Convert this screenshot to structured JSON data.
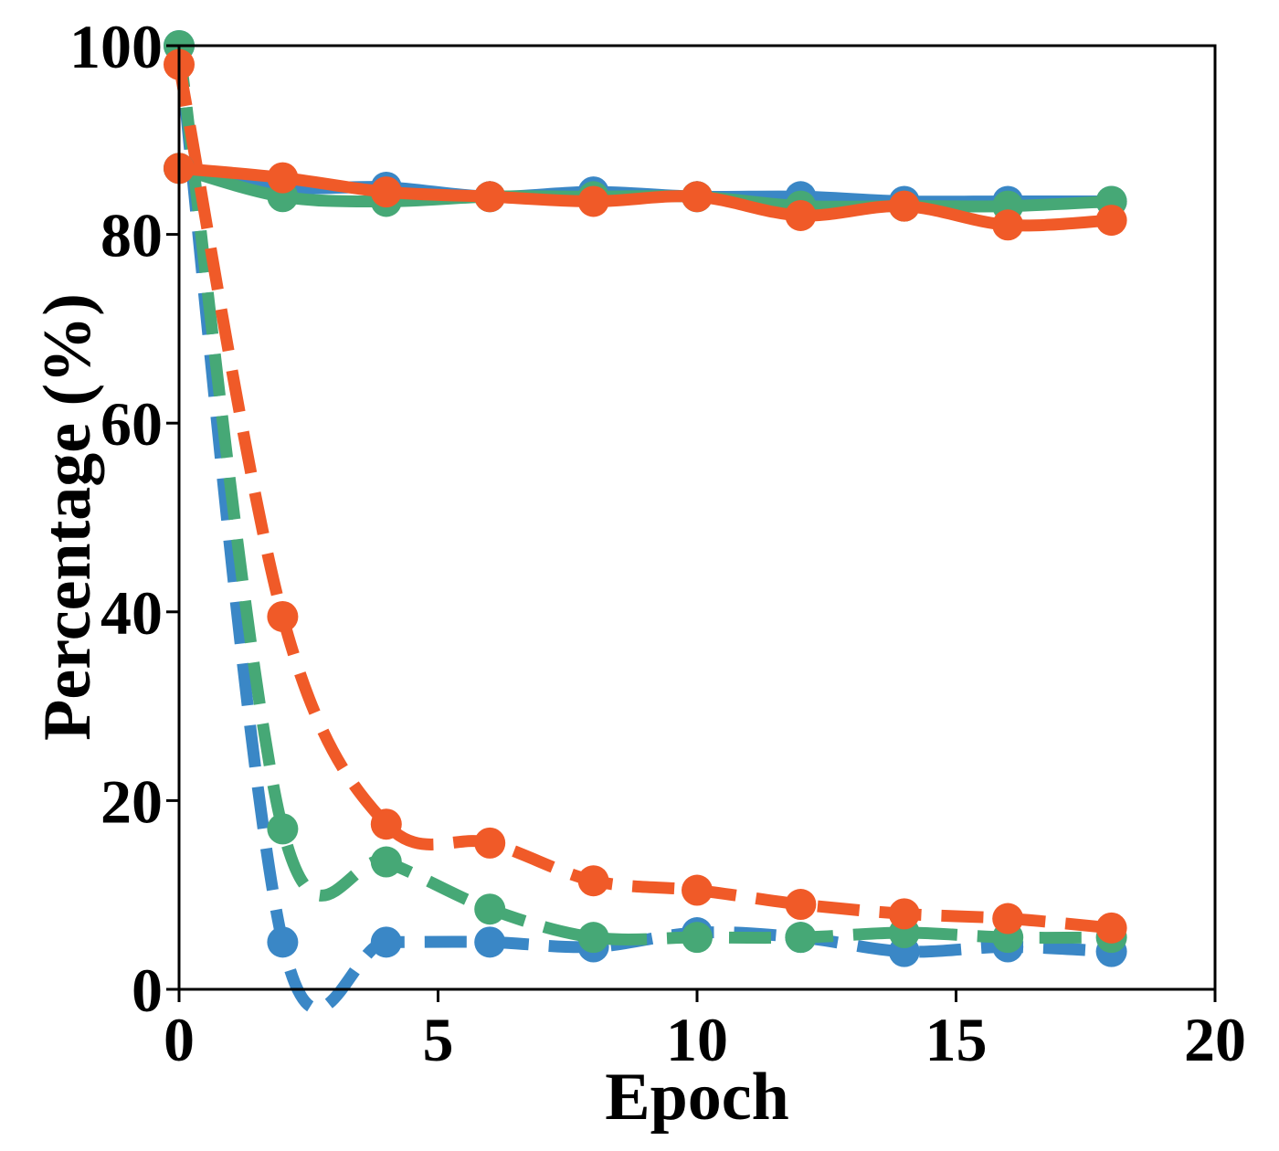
{
  "chart_data": {
    "type": "line",
    "title": "",
    "xlabel": "Epoch",
    "ylabel": "Percentage (%)",
    "xlim": [
      0,
      20
    ],
    "ylim": [
      0,
      100
    ],
    "xticks": [
      0,
      5,
      10,
      15,
      20
    ],
    "yticks": [
      0,
      20,
      40,
      60,
      80,
      100
    ],
    "grid": false,
    "legend": "none",
    "x": [
      0,
      2,
      4,
      6,
      8,
      10,
      12,
      14,
      16,
      18
    ],
    "series": [
      {
        "color": "#3a87c6",
        "style": "solid",
        "values": [
          87,
          85,
          85,
          84,
          84.5,
          84,
          84,
          83.5,
          83.5,
          83.5
        ]
      },
      {
        "color": "#46a876",
        "style": "solid",
        "values": [
          87,
          84,
          83.5,
          84,
          84,
          84,
          83,
          83,
          83,
          83.5
        ]
      },
      {
        "color": "#f05a28",
        "style": "solid",
        "values": [
          87,
          86,
          84.5,
          84,
          83.5,
          84,
          82,
          83,
          81,
          81.5
        ]
      },
      {
        "color": "#3a87c6",
        "style": "dashed",
        "values": [
          100,
          5,
          5,
          5,
          4.5,
          6,
          5.5,
          4,
          4.5,
          4
        ]
      },
      {
        "color": "#46a876",
        "style": "dashed",
        "values": [
          100,
          17,
          13.5,
          8.5,
          5.5,
          5.5,
          5.5,
          6,
          5.5,
          5.5
        ]
      },
      {
        "color": "#f05a28",
        "style": "dashed",
        "values": [
          98,
          39.5,
          17.5,
          15.5,
          11.5,
          10.5,
          9,
          8,
          7.5,
          6.5
        ]
      }
    ]
  }
}
